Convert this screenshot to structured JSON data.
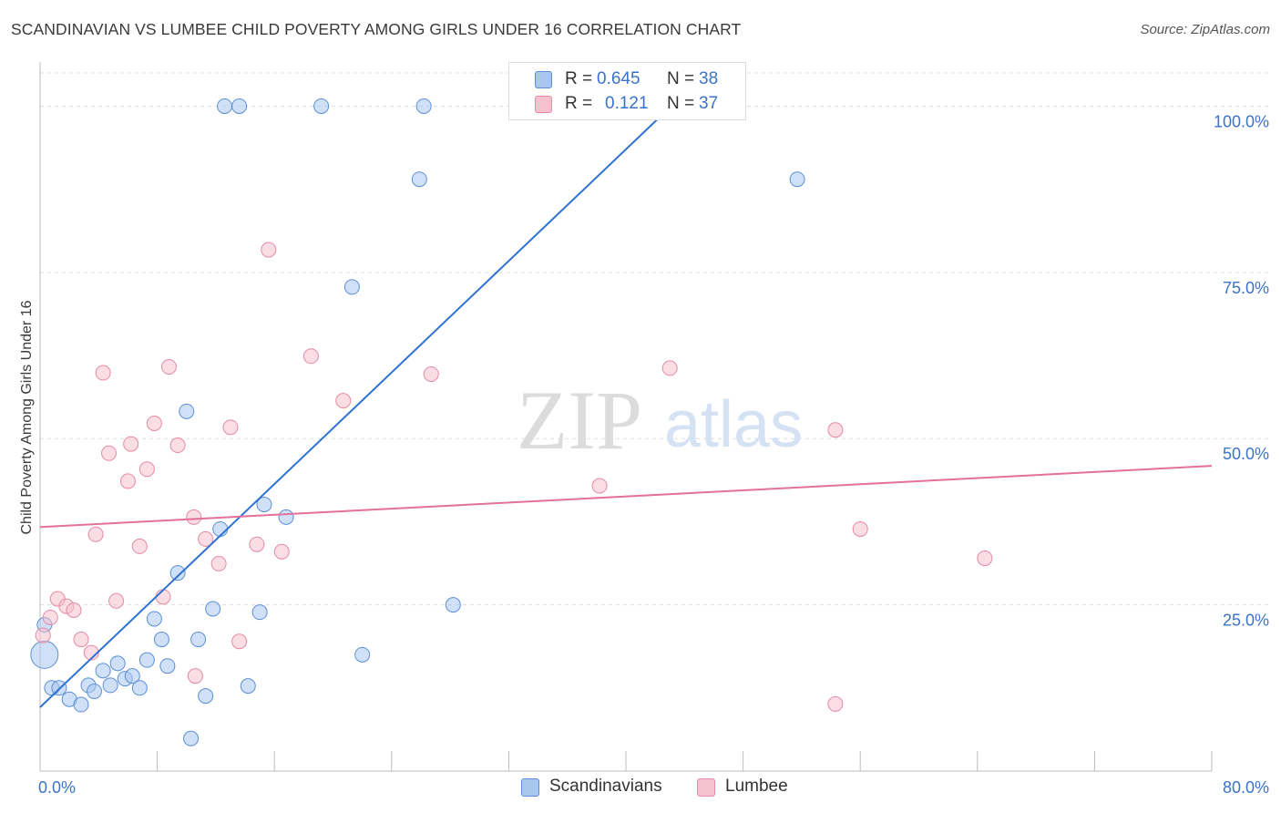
{
  "header": {
    "title": "SCANDINAVIAN VS LUMBEE CHILD POVERTY AMONG GIRLS UNDER 16 CORRELATION CHART",
    "source": "Source: ZipAtlas.com"
  },
  "watermark": {
    "zip": "ZIP",
    "atlas": "atlas"
  },
  "stats": {
    "blue": {
      "r_label": "R =",
      "r_value": "0.645",
      "n_label": "N =",
      "n_value": "38"
    },
    "pink": {
      "r_label": "R =",
      "r_value": "0.121",
      "n_label": "N =",
      "n_value": "37"
    }
  },
  "legend": {
    "blue": "Scandinavians",
    "pink": "Lumbee"
  },
  "colors": {
    "blue_fill": "#a9c7ee",
    "blue_stroke": "#5b8fd6",
    "blue_line": "#2f72d1",
    "pink_fill": "#f6c1cf",
    "pink_stroke": "#e58aa5",
    "pink_line": "#e3719a",
    "tick_text": "#3a73c8",
    "grid": "#dddddd"
  },
  "chart_data": {
    "type": "scatter",
    "title": "SCANDINAVIAN VS LUMBEE CHILD POVERTY AMONG GIRLS UNDER 16 CORRELATION CHART",
    "xlabel": "",
    "ylabel": "Child Poverty Among Girls Under 16",
    "xlim": [
      0,
      80
    ],
    "ylim": [
      0,
      105
    ],
    "x_tick_labels": [
      "0.0%",
      "80.0%"
    ],
    "y_ticks": [
      25,
      50,
      75,
      100
    ],
    "y_tick_labels": [
      "25.0%",
      "50.0%",
      "75.0%",
      "100.0%"
    ],
    "grid": true,
    "legend_position": "bottom-center",
    "series": [
      {
        "name": "Scandinavians",
        "points": [
          [
            0.3,
            17.5
          ],
          [
            0.8,
            12.5
          ],
          [
            1.3,
            12.5
          ],
          [
            2.0,
            10.8
          ],
          [
            2.8,
            10.0
          ],
          [
            3.3,
            12.9
          ],
          [
            3.7,
            12.0
          ],
          [
            4.3,
            15.1
          ],
          [
            4.8,
            12.9
          ],
          [
            5.3,
            16.2
          ],
          [
            5.8,
            13.9
          ],
          [
            6.3,
            14.3
          ],
          [
            6.8,
            12.5
          ],
          [
            7.3,
            16.7
          ],
          [
            7.8,
            22.9
          ],
          [
            8.3,
            19.8
          ],
          [
            8.7,
            15.8
          ],
          [
            9.4,
            29.8
          ],
          [
            10.0,
            54.1
          ],
          [
            10.3,
            4.9
          ],
          [
            10.8,
            19.8
          ],
          [
            11.3,
            11.3
          ],
          [
            11.8,
            24.4
          ],
          [
            12.3,
            36.4
          ],
          [
            12.6,
            100.0
          ],
          [
            13.6,
            100.0
          ],
          [
            14.2,
            12.8
          ],
          [
            15.0,
            23.9
          ],
          [
            15.3,
            40.1
          ],
          [
            16.8,
            38.2
          ],
          [
            19.2,
            100.0
          ],
          [
            21.3,
            72.8
          ],
          [
            22.0,
            17.5
          ],
          [
            25.9,
            89.0
          ],
          [
            26.2,
            100.0
          ],
          [
            28.2,
            25.0
          ],
          [
            51.7,
            89.0
          ],
          [
            0.3,
            22.0
          ]
        ],
        "trend": {
          "x": [
            0,
            45
          ],
          "y": [
            9.6,
            104.0
          ]
        }
      },
      {
        "name": "Lumbee",
        "points": [
          [
            0.2,
            20.4
          ],
          [
            0.7,
            23.1
          ],
          [
            1.2,
            25.9
          ],
          [
            1.8,
            24.8
          ],
          [
            2.3,
            24.2
          ],
          [
            2.8,
            19.8
          ],
          [
            3.5,
            17.8
          ],
          [
            3.8,
            35.6
          ],
          [
            4.3,
            59.9
          ],
          [
            4.7,
            47.8
          ],
          [
            5.2,
            25.6
          ],
          [
            6.0,
            43.6
          ],
          [
            6.2,
            49.2
          ],
          [
            6.8,
            33.8
          ],
          [
            7.3,
            45.4
          ],
          [
            7.8,
            52.3
          ],
          [
            8.4,
            26.2
          ],
          [
            8.8,
            60.8
          ],
          [
            9.4,
            49.0
          ],
          [
            10.5,
            38.2
          ],
          [
            10.6,
            14.3
          ],
          [
            11.3,
            34.9
          ],
          [
            12.2,
            31.2
          ],
          [
            13.0,
            51.7
          ],
          [
            13.6,
            19.5
          ],
          [
            14.8,
            34.1
          ],
          [
            15.6,
            78.4
          ],
          [
            16.5,
            33.0
          ],
          [
            18.5,
            62.4
          ],
          [
            20.7,
            55.7
          ],
          [
            26.7,
            59.7
          ],
          [
            38.2,
            42.9
          ],
          [
            43.0,
            60.6
          ],
          [
            54.3,
            51.3
          ],
          [
            54.3,
            10.1
          ],
          [
            56.0,
            36.4
          ],
          [
            64.5,
            32.0
          ]
        ],
        "trend": {
          "x": [
            0,
            80
          ],
          "y": [
            36.7,
            45.9
          ]
        }
      }
    ]
  }
}
